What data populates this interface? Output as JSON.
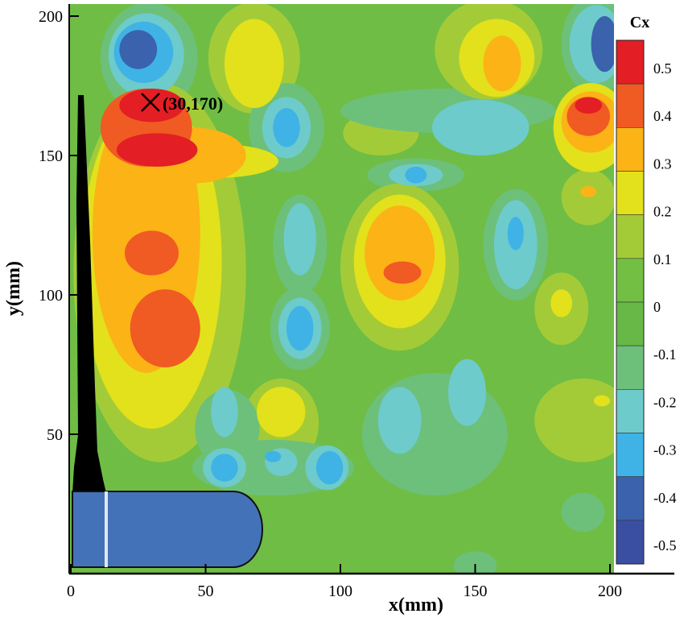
{
  "chart_data": {
    "type": "heatmap",
    "xlabel": "x(mm)",
    "ylabel": "y(mm)",
    "xlim": [
      0,
      205
    ],
    "ylim": [
      0,
      205
    ],
    "xticks": [
      "0",
      "50",
      "100",
      "150",
      "200"
    ],
    "yticks": [
      "50",
      "100",
      "150",
      "200"
    ],
    "colorbar": {
      "title": "Cx",
      "tick_labels": [
        "0.5",
        "0.4",
        "0.3",
        "0.2",
        "0.1",
        "0",
        "-0.1",
        "-0.2",
        "-0.3",
        "-0.4",
        "-0.5"
      ],
      "band_colors": [
        "#e31e24",
        "#f05a23",
        "#fbb316",
        "#e2e11b",
        "#a3cb38",
        "#72bf44",
        "#67b846",
        "#6dc07a",
        "#6ecbcb",
        "#3fb3e6",
        "#3b62ad",
        "#3a4fa2"
      ]
    },
    "background_cx": 0.05,
    "annotation": {
      "label": "(30,170)",
      "x": 30,
      "y": 170
    },
    "regions": [
      {
        "x": 29,
        "y": 185,
        "rx": 18,
        "ry": 20,
        "cx": -0.15
      },
      {
        "x": 28,
        "y": 186,
        "rx": 14,
        "ry": 15,
        "cx": -0.25
      },
      {
        "x": 27,
        "y": 187,
        "rx": 11,
        "ry": 11,
        "cx": -0.35
      },
      {
        "x": 25,
        "y": 188,
        "rx": 7,
        "ry": 7,
        "cx": -0.45
      },
      {
        "x": 33,
        "y": 108,
        "rx": 32,
        "ry": 68,
        "cx": 0.15
      },
      {
        "x": 30,
        "y": 112,
        "rx": 26,
        "ry": 60,
        "cx": 0.25
      },
      {
        "x": 28,
        "y": 122,
        "rx": 20,
        "ry": 50,
        "cx": 0.35
      },
      {
        "x": 45,
        "y": 150,
        "rx": 20,
        "ry": 10,
        "cx": 0.35
      },
      {
        "x": 55,
        "y": 148,
        "rx": 22,
        "ry": 6,
        "cx": 0.25
      },
      {
        "x": 28,
        "y": 160,
        "rx": 17,
        "ry": 14,
        "cx": 0.45
      },
      {
        "x": 30,
        "y": 115,
        "rx": 10,
        "ry": 8,
        "cx": 0.45
      },
      {
        "x": 35,
        "y": 88,
        "rx": 13,
        "ry": 14,
        "cx": 0.45
      },
      {
        "x": 30,
        "y": 168,
        "rx": 12,
        "ry": 6,
        "cx": 0.55
      },
      {
        "x": 32,
        "y": 152,
        "rx": 15,
        "ry": 6,
        "cx": 0.55
      },
      {
        "x": 68,
        "y": 185,
        "rx": 17,
        "ry": 20,
        "cx": 0.15
      },
      {
        "x": 68,
        "y": 183,
        "rx": 11,
        "ry": 16,
        "cx": 0.25
      },
      {
        "x": 80,
        "y": 160,
        "rx": 14,
        "ry": 16,
        "cx": -0.15
      },
      {
        "x": 80,
        "y": 160,
        "rx": 9,
        "ry": 11,
        "cx": -0.25
      },
      {
        "x": 80,
        "y": 160,
        "rx": 5,
        "ry": 7,
        "cx": -0.35
      },
      {
        "x": 115,
        "y": 158,
        "rx": 14,
        "ry": 8,
        "cx": 0.15
      },
      {
        "x": 140,
        "y": 166,
        "rx": 40,
        "ry": 8,
        "cx": -0.15
      },
      {
        "x": 152,
        "y": 160,
        "rx": 18,
        "ry": 10,
        "cx": -0.25
      },
      {
        "x": 128,
        "y": 143,
        "rx": 18,
        "ry": 6,
        "cx": -0.15
      },
      {
        "x": 128,
        "y": 143,
        "rx": 10,
        "ry": 4,
        "cx": -0.25
      },
      {
        "x": 128,
        "y": 143,
        "rx": 4,
        "ry": 3,
        "cx": -0.35
      },
      {
        "x": 155,
        "y": 188,
        "rx": 20,
        "ry": 18,
        "cx": 0.15
      },
      {
        "x": 158,
        "y": 185,
        "rx": 14,
        "ry": 14,
        "cx": 0.25
      },
      {
        "x": 160,
        "y": 183,
        "rx": 7,
        "ry": 10,
        "cx": 0.35
      },
      {
        "x": 195,
        "y": 190,
        "rx": 13,
        "ry": 18,
        "cx": -0.15
      },
      {
        "x": 195,
        "y": 190,
        "rx": 10,
        "ry": 14,
        "cx": -0.25
      },
      {
        "x": 198,
        "y": 190,
        "rx": 5,
        "ry": 10,
        "cx": -0.45
      },
      {
        "x": 193,
        "y": 160,
        "rx": 14,
        "ry": 16,
        "cx": 0.25
      },
      {
        "x": 193,
        "y": 162,
        "rx": 11,
        "ry": 11,
        "cx": 0.35
      },
      {
        "x": 192,
        "y": 164,
        "rx": 8,
        "ry": 7,
        "cx": 0.45
      },
      {
        "x": 192,
        "y": 168,
        "rx": 5,
        "ry": 3,
        "cx": 0.55
      },
      {
        "x": 122,
        "y": 110,
        "rx": 22,
        "ry": 30,
        "cx": 0.15
      },
      {
        "x": 122,
        "y": 112,
        "rx": 17,
        "ry": 24,
        "cx": 0.25
      },
      {
        "x": 122,
        "y": 115,
        "rx": 13,
        "ry": 17,
        "cx": 0.35
      },
      {
        "x": 123,
        "y": 108,
        "rx": 7,
        "ry": 4,
        "cx": 0.45
      },
      {
        "x": 85,
        "y": 118,
        "rx": 10,
        "ry": 18,
        "cx": -0.15
      },
      {
        "x": 85,
        "y": 120,
        "rx": 6,
        "ry": 13,
        "cx": -0.25
      },
      {
        "x": 165,
        "y": 118,
        "rx": 12,
        "ry": 20,
        "cx": -0.15
      },
      {
        "x": 165,
        "y": 118,
        "rx": 8,
        "ry": 16,
        "cx": -0.25
      },
      {
        "x": 165,
        "y": 122,
        "rx": 3,
        "ry": 6,
        "cx": -0.35
      },
      {
        "x": 192,
        "y": 135,
        "rx": 10,
        "ry": 10,
        "cx": 0.15
      },
      {
        "x": 192,
        "y": 137,
        "rx": 3,
        "ry": 2,
        "cx": 0.35
      },
      {
        "x": 85,
        "y": 88,
        "rx": 11,
        "ry": 15,
        "cx": -0.15
      },
      {
        "x": 85,
        "y": 88,
        "rx": 8,
        "ry": 11,
        "cx": -0.25
      },
      {
        "x": 85,
        "y": 88,
        "rx": 5,
        "ry": 8,
        "cx": -0.35
      },
      {
        "x": 78,
        "y": 54,
        "rx": 14,
        "ry": 16,
        "cx": 0.15
      },
      {
        "x": 78,
        "y": 58,
        "rx": 9,
        "ry": 9,
        "cx": 0.25
      },
      {
        "x": 182,
        "y": 95,
        "rx": 10,
        "ry": 13,
        "cx": 0.15
      },
      {
        "x": 182,
        "y": 97,
        "rx": 4,
        "ry": 5,
        "cx": 0.25
      },
      {
        "x": 135,
        "y": 50,
        "rx": 27,
        "ry": 22,
        "cx": -0.15
      },
      {
        "x": 122,
        "y": 55,
        "rx": 8,
        "ry": 12,
        "cx": -0.25
      },
      {
        "x": 147,
        "y": 65,
        "rx": 7,
        "ry": 12,
        "cx": -0.25
      },
      {
        "x": 58,
        "y": 52,
        "rx": 12,
        "ry": 14,
        "cx": -0.15
      },
      {
        "x": 57,
        "y": 58,
        "rx": 5,
        "ry": 9,
        "cx": -0.25
      },
      {
        "x": 75,
        "y": 38,
        "rx": 30,
        "ry": 10,
        "cx": -0.15
      },
      {
        "x": 57,
        "y": 38,
        "rx": 8,
        "ry": 7,
        "cx": -0.25
      },
      {
        "x": 78,
        "y": 40,
        "rx": 6,
        "ry": 5,
        "cx": -0.25
      },
      {
        "x": 95,
        "y": 38,
        "rx": 8,
        "ry": 8,
        "cx": -0.25
      },
      {
        "x": 57,
        "y": 38,
        "rx": 5,
        "ry": 5,
        "cx": -0.35
      },
      {
        "x": 75,
        "y": 42,
        "rx": 3,
        "ry": 2,
        "cx": -0.35
      },
      {
        "x": 96,
        "y": 38,
        "rx": 5,
        "ry": 6,
        "cx": -0.35
      },
      {
        "x": 190,
        "y": 55,
        "rx": 18,
        "ry": 15,
        "cx": 0.15
      },
      {
        "x": 197,
        "y": 62,
        "rx": 3,
        "ry": 2,
        "cx": 0.25
      },
      {
        "x": 190,
        "y": 22,
        "rx": 8,
        "ry": 7,
        "cx": -0.15
      },
      {
        "x": 150,
        "y": 3,
        "rx": 8,
        "ry": 5,
        "cx": -0.15
      }
    ]
  }
}
